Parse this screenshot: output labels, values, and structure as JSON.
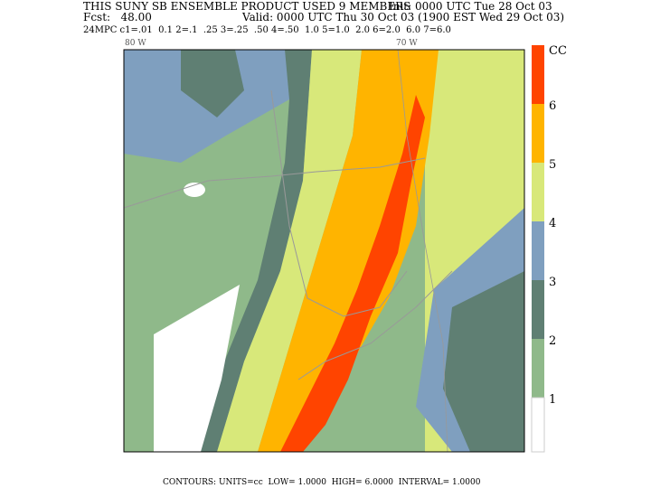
{
  "header": {
    "product": "THIS SUNY SB ENSEMBLE PRODUCT USED 9 MEMBERS",
    "init": "Init: 0000 UTC Tue 28 Oct 03",
    "forecast": "Fcst:   48.00",
    "valid": "Valid: 0000 UTC Thu 30 Oct 03 (1900 EST Wed 29 Oct 03)",
    "contour_key": "24MPC c1=.01  0.1 2=.1  .25 3=.25  .50 4=.50  1.0 5=1.0  2.0 6=2.0  6.0 7=6.0"
  },
  "map": {
    "longitude_labels": [
      "80 W",
      "70 W"
    ]
  },
  "colorbar": {
    "labels": [
      "CC",
      "6",
      "5",
      "4",
      "3",
      "2",
      "1"
    ]
  },
  "footer": "CONTOURS: UNITS=cc  LOW= 1.0000  HIGH= 6.0000  INTERVAL= 1.0000"
}
